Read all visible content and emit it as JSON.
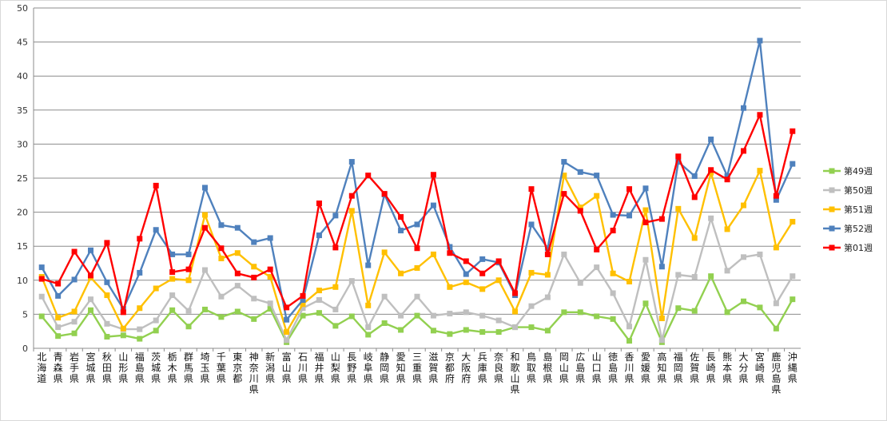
{
  "chart_data": {
    "type": "line",
    "title": "",
    "xlabel": "",
    "ylabel": "",
    "ylim": [
      0,
      50
    ],
    "yticks": [
      0,
      5,
      10,
      15,
      20,
      25,
      30,
      35,
      40,
      45,
      50
    ],
    "grid": true,
    "legend": "right",
    "categories": [
      "北海道",
      "青森県",
      "岩手県",
      "宮城県",
      "秋田県",
      "山形県",
      "福島県",
      "茨城県",
      "栃木県",
      "群馬県",
      "埼玉県",
      "千葉県",
      "東京都",
      "神奈川県",
      "新潟県",
      "富山県",
      "石川県",
      "福井県",
      "山梨県",
      "長野県",
      "岐阜県",
      "静岡県",
      "愛知県",
      "三重県",
      "滋賀県",
      "京都府",
      "大阪府",
      "兵庫県",
      "奈良県",
      "和歌山県",
      "鳥取県",
      "島根県",
      "岡山県",
      "広島県",
      "山口県",
      "徳島県",
      "香川県",
      "愛媛県",
      "高知県",
      "福岡県",
      "佐賀県",
      "長崎県",
      "熊本県",
      "大分県",
      "宮崎県",
      "鹿児島県",
      "沖縄県"
    ],
    "series": [
      {
        "name": "第49週",
        "color": "#92d050",
        "marker": "square",
        "values": [
          4.7,
          1.8,
          2.2,
          5.6,
          1.7,
          1.9,
          1.4,
          2.6,
          5.6,
          3.2,
          5.7,
          4.6,
          5.4,
          4.3,
          5.8,
          0.9,
          4.8,
          5.2,
          3.3,
          4.7,
          2.0,
          3.7,
          2.7,
          4.8,
          2.6,
          2.1,
          2.7,
          2.4,
          2.4,
          3.1,
          3.1,
          2.6,
          5.3,
          5.3,
          4.7,
          4.3,
          1.1,
          6.6,
          0.9,
          5.9,
          5.5,
          10.6,
          5.3,
          6.9,
          6.0,
          2.9,
          7.2
        ]
      },
      {
        "name": "第50週",
        "color": "#bfbfbf",
        "marker": "square",
        "values": [
          7.6,
          3.1,
          3.9,
          7.2,
          3.6,
          2.8,
          2.8,
          4.1,
          7.8,
          5.5,
          11.5,
          7.6,
          9.2,
          7.3,
          6.6,
          1.2,
          5.9,
          7.1,
          5.7,
          9.9,
          3.1,
          7.6,
          4.8,
          7.6,
          4.8,
          5.1,
          5.3,
          4.8,
          4.1,
          3.1,
          6.2,
          7.5,
          13.8,
          9.6,
          11.9,
          8.1,
          3.2,
          13.0,
          1.2,
          10.8,
          10.5,
          19.1,
          11.4,
          13.4,
          13.8,
          6.6,
          10.6
        ]
      },
      {
        "name": "第51週",
        "color": "#ffc000",
        "marker": "square",
        "values": [
          10.5,
          4.5,
          5.4,
          10.4,
          7.8,
          2.9,
          5.9,
          8.8,
          10.2,
          10.0,
          19.6,
          13.2,
          14.0,
          12.0,
          10.5,
          2.4,
          6.5,
          8.5,
          9.0,
          20.2,
          6.3,
          14.1,
          11.0,
          11.8,
          13.8,
          9.0,
          9.7,
          8.7,
          10.0,
          5.4,
          11.1,
          10.8,
          25.4,
          20.7,
          22.4,
          11.0,
          9.8,
          20.3,
          4.4,
          20.5,
          16.2,
          25.8,
          17.5,
          21.0,
          26.1,
          14.8,
          18.6
        ]
      },
      {
        "name": "第52週",
        "color": "#4f81bd",
        "marker": "square",
        "values": [
          11.9,
          7.7,
          10.1,
          14.4,
          9.7,
          5.8,
          11.1,
          17.4,
          13.8,
          13.8,
          23.6,
          18.1,
          17.7,
          15.6,
          16.2,
          4.2,
          7.1,
          16.6,
          19.5,
          27.4,
          12.2,
          22.6,
          17.3,
          18.2,
          21.0,
          14.9,
          10.9,
          13.1,
          12.6,
          7.8,
          18.2,
          14.7,
          27.4,
          25.9,
          25.4,
          19.6,
          19.5,
          23.5,
          12.0,
          27.4,
          25.3,
          30.7,
          25.3,
          35.3,
          45.2,
          21.8,
          27.1
        ]
      },
      {
        "name": "第01週",
        "color": "#ff0000",
        "marker": "square",
        "values": [
          10.2,
          9.5,
          14.2,
          10.7,
          15.5,
          5.3,
          16.1,
          23.9,
          11.2,
          11.6,
          17.7,
          14.7,
          11.0,
          10.4,
          11.6,
          6.0,
          7.7,
          21.3,
          14.8,
          22.4,
          25.4,
          22.7,
          19.3,
          14.7,
          25.5,
          14.0,
          12.8,
          11.0,
          12.8,
          8.1,
          23.4,
          13.8,
          22.7,
          20.2,
          14.5,
          17.3,
          23.4,
          18.5,
          19.0,
          28.2,
          22.2,
          26.2,
          24.8,
          29.0,
          34.3,
          22.4,
          31.9
        ]
      }
    ]
  }
}
